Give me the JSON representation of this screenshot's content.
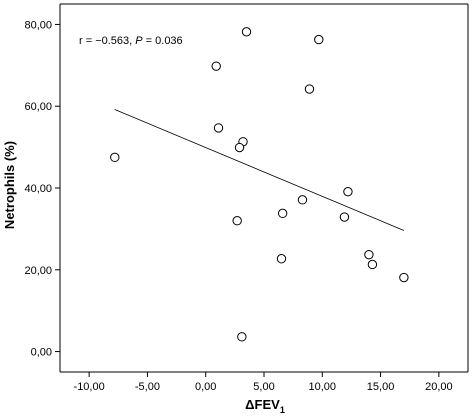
{
  "chart_data": {
    "type": "scatter",
    "xlabel": "ΔFEV",
    "xlabel_subscript": "1",
    "ylabel": "Netrophils (%)",
    "xlim": [
      -12.5,
      22.5
    ],
    "ylim": [
      -5,
      85
    ],
    "x_ticks": [
      -10,
      -5,
      0,
      5,
      10,
      15,
      20
    ],
    "y_ticks": [
      0,
      20,
      40,
      60,
      80
    ],
    "x_tick_labels": [
      "-10,00",
      "-5,00",
      "0,00",
      "5,00",
      "10,00",
      "15,00",
      "20,00"
    ],
    "y_tick_labels": [
      "0,00",
      "20,00",
      "40,00",
      "60,00",
      "80,00"
    ],
    "annotation": {
      "prefix": "r = −0.563, ",
      "p_symbol": "P",
      "suffix": " = 0.036"
    },
    "points": [
      {
        "x": 3.5,
        "y": 78.2
      },
      {
        "x": 9.7,
        "y": 76.3
      },
      {
        "x": 0.9,
        "y": 69.8
      },
      {
        "x": 8.9,
        "y": 64.2
      },
      {
        "x": 1.1,
        "y": 54.7
      },
      {
        "x": 3.2,
        "y": 51.3
      },
      {
        "x": 2.9,
        "y": 49.9
      },
      {
        "x": -7.8,
        "y": 47.5
      },
      {
        "x": 12.2,
        "y": 39.1
      },
      {
        "x": 8.3,
        "y": 37.1
      },
      {
        "x": 6.6,
        "y": 33.8
      },
      {
        "x": 11.9,
        "y": 32.9
      },
      {
        "x": 2.7,
        "y": 32.0
      },
      {
        "x": 14.0,
        "y": 23.7
      },
      {
        "x": 6.5,
        "y": 22.7
      },
      {
        "x": 14.3,
        "y": 21.3
      },
      {
        "x": 17.0,
        "y": 18.1
      },
      {
        "x": 3.1,
        "y": 3.6
      }
    ],
    "fit_line": {
      "x": [
        -7.8,
        17.0
      ],
      "y": [
        59.2,
        29.6
      ]
    },
    "grid": false
  }
}
